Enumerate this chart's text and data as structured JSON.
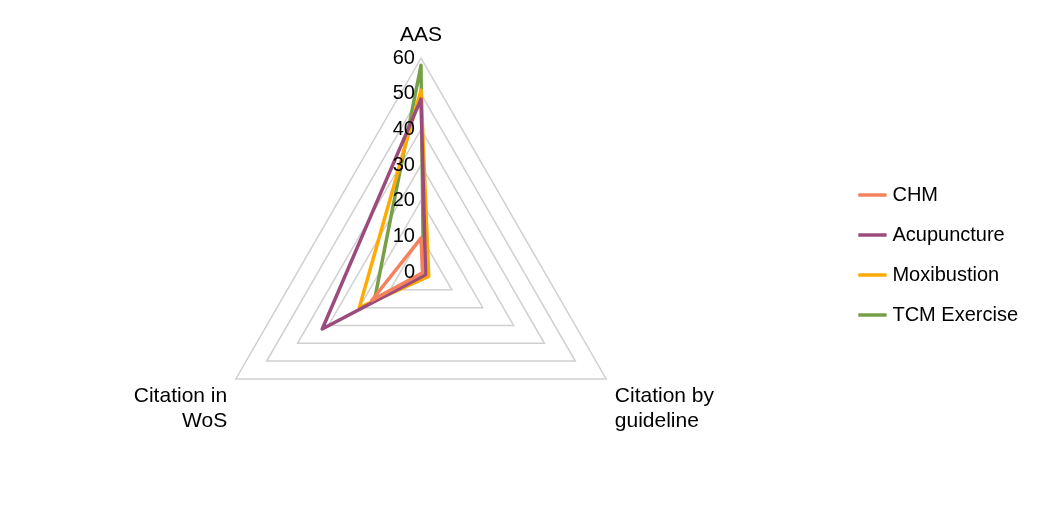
{
  "chart_data": {
    "type": "radar",
    "categories": [
      "AAS",
      "Citation by guideline",
      "Citation in WoS"
    ],
    "series": [
      {
        "name": "CHM",
        "color": "#f4825c",
        "values": [
          9.5,
          0.5,
          16
        ]
      },
      {
        "name": "Acupuncture",
        "color": "#9b4b7c",
        "values": [
          48.5,
          1.5,
          32
        ]
      },
      {
        "name": "Moxibustion",
        "color": "#ffaa00",
        "values": [
          51,
          2.5,
          20
        ]
      },
      {
        "name": "TCM Exercise",
        "color": "#76a047",
        "values": [
          58,
          0.8,
          15
        ]
      }
    ],
    "ylim": [
      0,
      60
    ],
    "yticks": [
      0,
      10,
      20,
      30,
      40,
      50,
      60
    ],
    "legend": "right",
    "grid": true,
    "marker": "none",
    "line_style": "solid"
  }
}
